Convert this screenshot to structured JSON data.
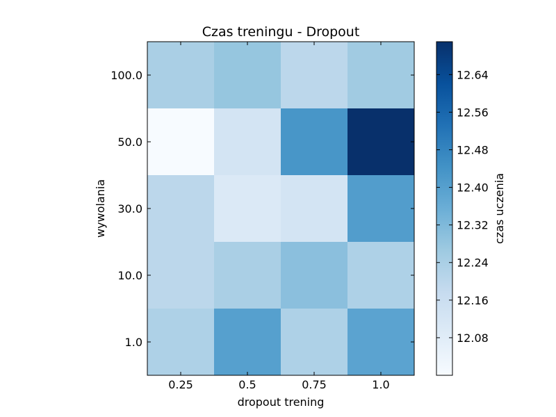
{
  "chart_data": {
    "type": "heatmap",
    "title": "Czas treningu - Dropout",
    "xlabel": "dropout trening",
    "ylabel": "wywolania",
    "x_categories": [
      "0.25",
      "0.5",
      "0.75",
      "1.0"
    ],
    "y_categories": [
      "100.0",
      "50.0",
      "30.0",
      "10.0",
      "1.0"
    ],
    "values": [
      [
        12.24,
        12.28,
        12.2,
        12.26
      ],
      [
        12.0,
        12.13,
        12.43,
        12.71
      ],
      [
        12.2,
        12.1,
        12.13,
        12.41
      ],
      [
        12.2,
        12.24,
        12.3,
        12.23
      ],
      [
        12.23,
        12.4,
        12.23,
        12.39
      ]
    ],
    "colormap": "Blues",
    "vmin": 12.0,
    "vmax": 12.71,
    "colorbar": {
      "label": "czas uczenia",
      "ticks": [
        "12.08",
        "12.16",
        "12.24",
        "12.32",
        "12.40",
        "12.48",
        "12.56",
        "12.64"
      ]
    },
    "grid": false
  }
}
